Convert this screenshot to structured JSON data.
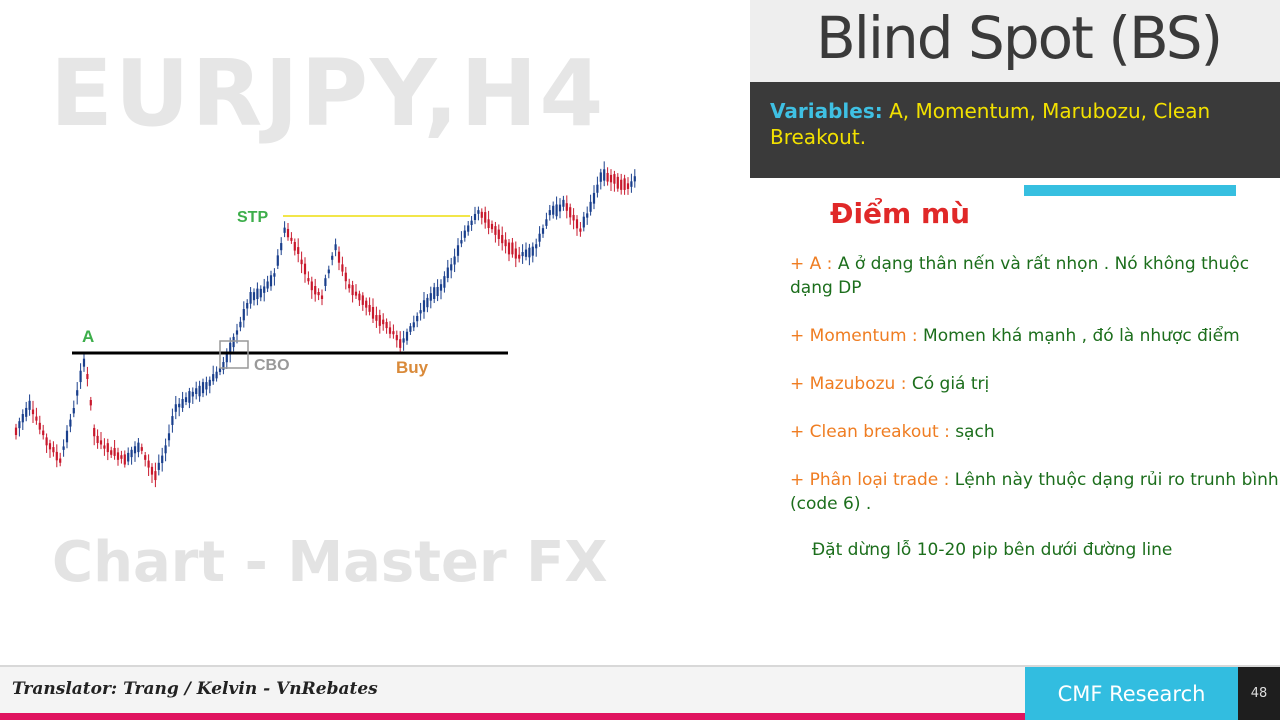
{
  "chart": {
    "watermark_symbol": "EURJPY,H4",
    "watermark_brand": "Chart - Master FX",
    "labels": {
      "a": "A",
      "stp": "STP",
      "cbo": "CBO",
      "buy": "Buy"
    },
    "colors": {
      "bull": "#1a3f8c",
      "bear": "#c8182c",
      "support_line": "#000000",
      "stp_line": "#f2e64a",
      "label_green": "#3dae4b",
      "label_orange": "#d98a3a",
      "label_gray": "#999999"
    }
  },
  "header": {
    "title": "Blind Spot (BS)"
  },
  "variables": {
    "label": "Variables:",
    "text": " A, Momentum, Marubozu, Clean Breakout."
  },
  "subtitle": "Điểm mù",
  "items": [
    {
      "label": "+ A : ",
      "text": "A ở dạng thân nến và rất nhọn . Nó không thuộc dạng DP"
    },
    {
      "label": "+ Momentum : ",
      "text": "Momen khá mạnh , đó là nhược điểm"
    },
    {
      "label": "+ Mazubozu : ",
      "text": "Có giá trị"
    },
    {
      "label": "+ Clean breakout : ",
      "text": "sạch"
    },
    {
      "label": "+ Phân loại trade : ",
      "text": "Lệnh này thuộc dạng rủi ro trunh bình (code 6) ."
    }
  ],
  "note": "Đặt dừng lỗ 10-20 pip bên dưới đường line",
  "footer": {
    "translator": "Translator: Trang / Kelvin - VnRebates",
    "brand": "CMF Research",
    "page": "48"
  }
}
